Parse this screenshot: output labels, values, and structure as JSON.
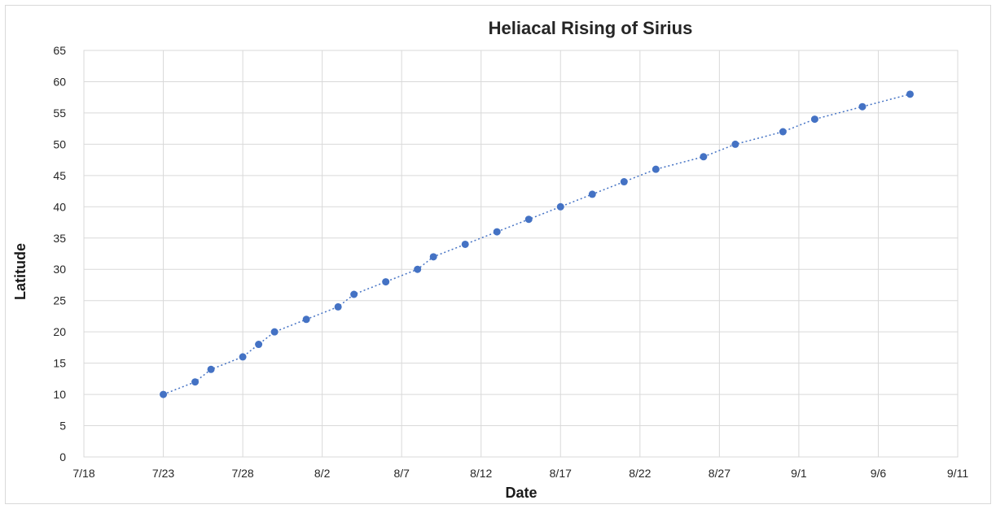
{
  "chart_data": {
    "type": "line",
    "title": "Heliacal Rising of Sirius",
    "xlabel": "Date",
    "ylabel": "Latitude",
    "x_tick_labels": [
      "7/18",
      "7/23",
      "7/28",
      "8/2",
      "8/7",
      "8/12",
      "8/17",
      "8/22",
      "8/27",
      "9/1",
      "9/6",
      "9/11"
    ],
    "y_tick_labels": [
      "0",
      "5",
      "10",
      "15",
      "20",
      "25",
      "30",
      "35",
      "40",
      "45",
      "50",
      "55",
      "60",
      "65"
    ],
    "xlim": [
      "7/18",
      "9/11"
    ],
    "ylim": [
      0,
      65
    ],
    "grid": true,
    "legend": "none",
    "series": [
      {
        "color": "#4472c4",
        "line_style": "dotted",
        "marker": "circle",
        "points": [
          {
            "x": "7/23",
            "y": 10
          },
          {
            "x": "7/25",
            "y": 12
          },
          {
            "x": "7/26",
            "y": 14
          },
          {
            "x": "7/28",
            "y": 16
          },
          {
            "x": "7/29",
            "y": 18
          },
          {
            "x": "7/30",
            "y": 20
          },
          {
            "x": "8/1",
            "y": 22
          },
          {
            "x": "8/3",
            "y": 24
          },
          {
            "x": "8/4",
            "y": 26
          },
          {
            "x": "8/6",
            "y": 28
          },
          {
            "x": "8/8",
            "y": 30
          },
          {
            "x": "8/9",
            "y": 32
          },
          {
            "x": "8/11",
            "y": 34
          },
          {
            "x": "8/13",
            "y": 36
          },
          {
            "x": "8/15",
            "y": 38
          },
          {
            "x": "8/17",
            "y": 40
          },
          {
            "x": "8/19",
            "y": 42
          },
          {
            "x": "8/21",
            "y": 44
          },
          {
            "x": "8/23",
            "y": 46
          },
          {
            "x": "8/26",
            "y": 48
          },
          {
            "x": "8/28",
            "y": 50
          },
          {
            "x": "8/31",
            "y": 52
          },
          {
            "x": "9/2",
            "y": 54
          },
          {
            "x": "9/5",
            "y": 56
          },
          {
            "x": "9/8",
            "y": 58
          }
        ]
      }
    ]
  }
}
